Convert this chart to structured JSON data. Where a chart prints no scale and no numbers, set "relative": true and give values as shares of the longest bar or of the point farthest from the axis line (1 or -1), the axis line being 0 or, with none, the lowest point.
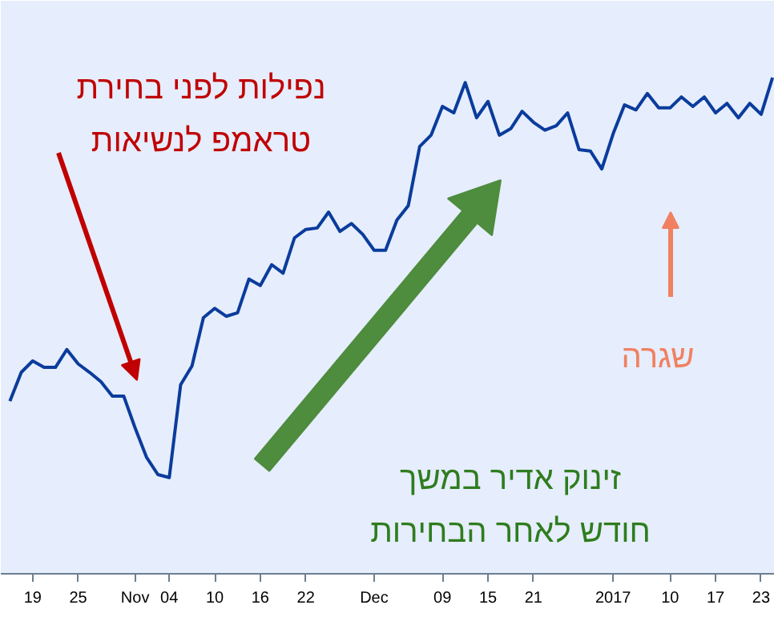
{
  "chart_data": {
    "type": "line",
    "relative": true,
    "categories": [
      null,
      null,
      "19",
      null,
      null,
      null,
      "25",
      null,
      null,
      null,
      null,
      "Nov",
      null,
      null,
      "04",
      null,
      null,
      null,
      "10",
      null,
      null,
      null,
      "16",
      null,
      null,
      null,
      "22",
      null,
      null,
      null,
      null,
      null,
      "Dec",
      null,
      null,
      null,
      null,
      null,
      "09",
      null,
      null,
      null,
      "15",
      null,
      null,
      null,
      "21",
      null,
      null,
      null,
      null,
      null,
      null,
      "2017",
      null,
      null,
      null,
      null,
      "10",
      null,
      null,
      null,
      "17",
      null,
      null,
      null,
      "23",
      null
    ],
    "series": [
      {
        "color": "#0a3c9c",
        "values": [
          0.348,
          0.406,
          0.429,
          0.416,
          0.416,
          0.452,
          0.423,
          0.406,
          0.387,
          0.358,
          0.358,
          0.294,
          0.235,
          0.2,
          0.194,
          0.381,
          0.419,
          0.516,
          0.535,
          0.519,
          0.526,
          0.594,
          0.581,
          0.623,
          0.606,
          0.677,
          0.694,
          0.697,
          0.729,
          0.69,
          0.706,
          0.684,
          0.652,
          0.652,
          0.713,
          0.742,
          0.861,
          0.884,
          0.942,
          0.929,
          0.99,
          0.919,
          0.952,
          0.884,
          0.897,
          0.932,
          0.91,
          0.894,
          0.903,
          0.929,
          0.855,
          0.852,
          0.816,
          0.887,
          0.945,
          0.935,
          0.968,
          0.939,
          0.939,
          0.961,
          0.942,
          0.961,
          0.929,
          0.948,
          0.919,
          0.948,
          0.926,
          1.0
        ]
      }
    ],
    "annotations": [
      "נפילות לפני בחירת\nטראמפ לנשיאות",
      "זינוק אדיר במשך\nחודש לאחר הבחירות",
      "שגרה"
    ],
    "grid": false,
    "marker": "none",
    "line_style": "solid"
  }
}
